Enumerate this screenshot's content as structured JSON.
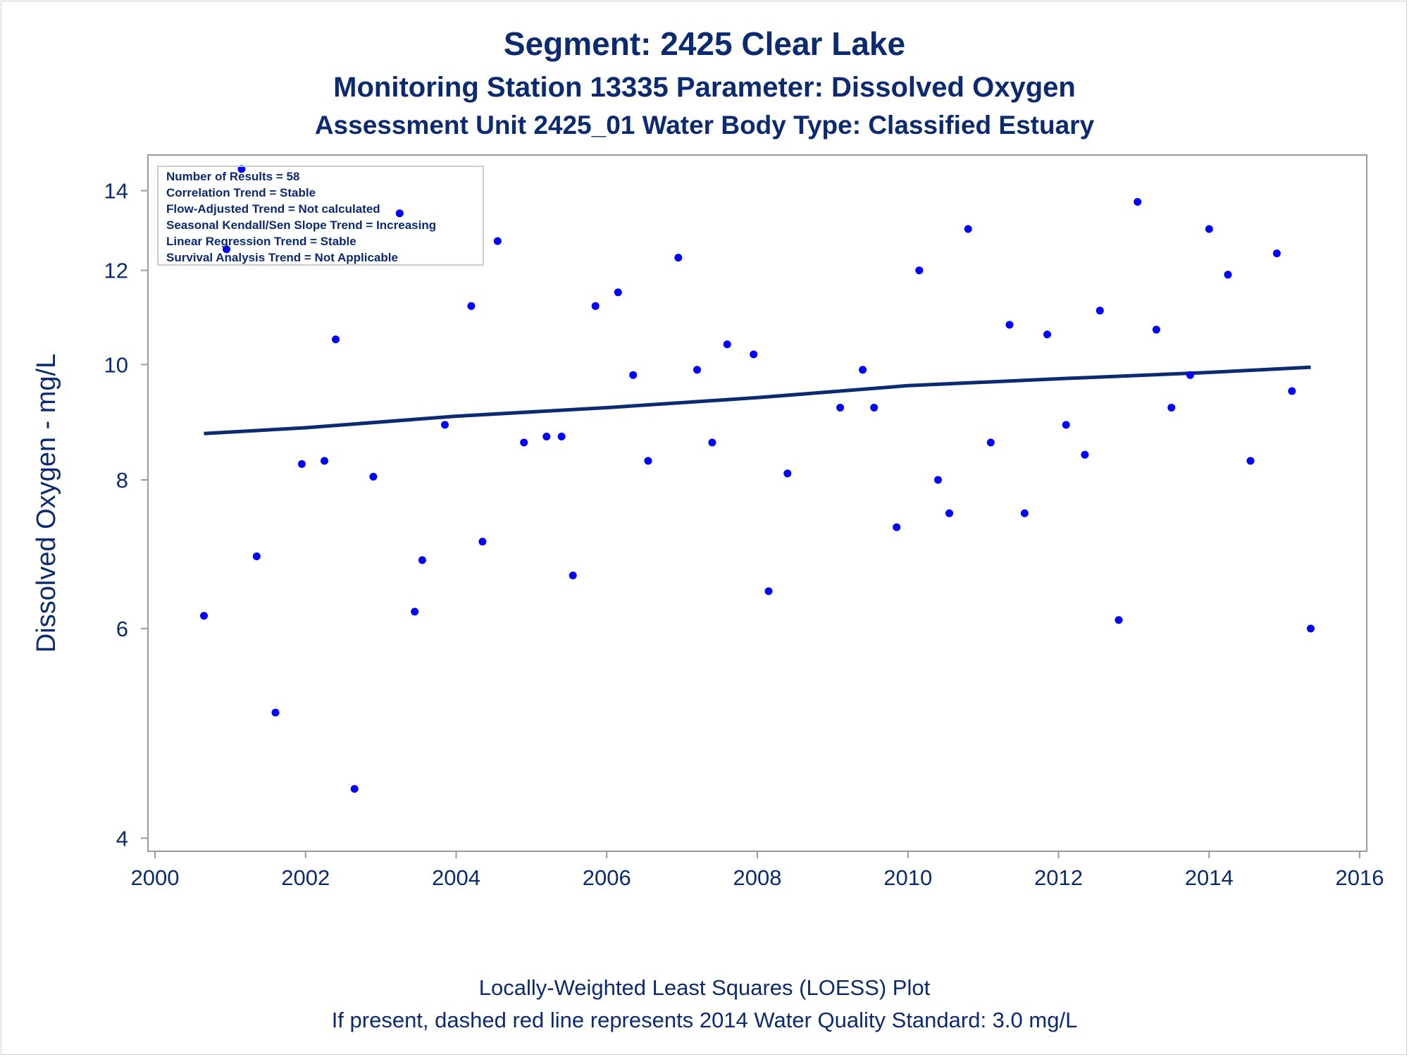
{
  "titles": {
    "line1": "Segment: 2425  Clear Lake",
    "line2": "Monitoring Station 13335 Parameter: Dissolved Oxygen",
    "line3": "Assessment Unit 2425_01   Water Body Type: Classified Estuary"
  },
  "footnotes": {
    "line1": "Locally-Weighted Least Squares (LOESS) Plot",
    "line2": "If present, dashed red line represents 2014 Water Quality Standard: 3.0 mg/L"
  },
  "inset": [
    "Number of Results = 58",
    "Correlation Trend = Stable",
    "Flow-Adjusted Trend = Not calculated",
    "Seasonal Kendall/Sen Slope Trend = Increasing",
    "Linear Regression Trend = Stable",
    "Survival Analysis Trend = Not Applicable"
  ],
  "colors": {
    "text": "#0b2a6f",
    "points": "#0000ff",
    "trend": "#0b2a6f",
    "frame": "#9a9a9a"
  },
  "chart_data": {
    "type": "scatter",
    "ylabel": "Dissolved Oxygen - mg/L",
    "xlabel": "",
    "xlim": [
      2000,
      2016
    ],
    "ylim": [
      3.9,
      15.0
    ],
    "y_scale": "log",
    "x_ticks": [
      "2000",
      "2002",
      "2004",
      "2006",
      "2008",
      "2010",
      "2012",
      "2014",
      "2016"
    ],
    "y_ticks": [
      "4",
      "6",
      "8",
      "10",
      "12",
      "14"
    ],
    "grid": false,
    "legend": "none",
    "series": [
      {
        "marker": "dot",
        "points": [
          [
            2000.65,
            6.15
          ],
          [
            2000.95,
            12.5
          ],
          [
            2001.15,
            14.6
          ],
          [
            2001.35,
            6.9
          ],
          [
            2001.6,
            5.1
          ],
          [
            2001.95,
            8.25
          ],
          [
            2002.25,
            8.3
          ],
          [
            2002.4,
            10.5
          ],
          [
            2002.65,
            4.4
          ],
          [
            2002.9,
            8.05
          ],
          [
            2003.25,
            13.4
          ],
          [
            2003.45,
            6.2
          ],
          [
            2003.55,
            6.85
          ],
          [
            2003.85,
            8.9
          ],
          [
            2004.2,
            11.2
          ],
          [
            2004.35,
            7.1
          ],
          [
            2004.55,
            12.7
          ],
          [
            2004.9,
            8.6
          ],
          [
            2005.2,
            8.7
          ],
          [
            2005.4,
            8.7
          ],
          [
            2005.55,
            6.65
          ],
          [
            2005.85,
            11.2
          ],
          [
            2006.15,
            11.5
          ],
          [
            2006.35,
            9.8
          ],
          [
            2006.55,
            8.3
          ],
          [
            2006.95,
            12.3
          ],
          [
            2007.2,
            9.9
          ],
          [
            2007.4,
            8.6
          ],
          [
            2007.6,
            10.4
          ],
          [
            2007.95,
            10.2
          ],
          [
            2008.15,
            6.45
          ],
          [
            2008.4,
            8.1
          ],
          [
            2009.1,
            9.2
          ],
          [
            2009.4,
            9.9
          ],
          [
            2009.55,
            9.2
          ],
          [
            2009.85,
            7.3
          ],
          [
            2010.15,
            12.0
          ],
          [
            2010.4,
            8.0
          ],
          [
            2010.55,
            7.5
          ],
          [
            2010.8,
            13.0
          ],
          [
            2011.1,
            8.6
          ],
          [
            2011.35,
            10.8
          ],
          [
            2011.55,
            7.5
          ],
          [
            2011.85,
            10.6
          ],
          [
            2012.1,
            8.9
          ],
          [
            2012.35,
            8.4
          ],
          [
            2012.55,
            11.1
          ],
          [
            2012.8,
            6.1
          ],
          [
            2013.05,
            13.7
          ],
          [
            2013.3,
            10.7
          ],
          [
            2013.5,
            9.2
          ],
          [
            2013.75,
            9.8
          ],
          [
            2014.0,
            13.0
          ],
          [
            2014.25,
            11.9
          ],
          [
            2014.55,
            8.3
          ],
          [
            2014.9,
            12.4
          ],
          [
            2015.1,
            9.5
          ],
          [
            2015.35,
            6.0
          ]
        ]
      }
    ],
    "trend_line": {
      "type": "LOESS",
      "points": [
        [
          2000.65,
          8.75
        ],
        [
          2002.0,
          8.85
        ],
        [
          2004.0,
          9.05
        ],
        [
          2006.0,
          9.2
        ],
        [
          2008.0,
          9.38
        ],
        [
          2010.0,
          9.6
        ],
        [
          2012.0,
          9.73
        ],
        [
          2014.0,
          9.85
        ],
        [
          2015.35,
          9.95
        ]
      ]
    }
  }
}
